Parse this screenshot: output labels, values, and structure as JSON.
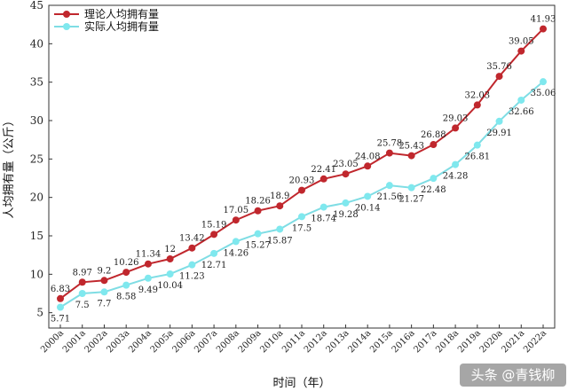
{
  "chart_data": {
    "type": "line",
    "title": "",
    "xlabel": "时间（年）",
    "ylabel": "人均拥有量（公斤）",
    "ylim": [
      3,
      45
    ],
    "yticks": [
      5,
      10,
      15,
      20,
      25,
      30,
      35,
      40,
      45
    ],
    "grid": false,
    "legend_position": "top-left",
    "categories": [
      "2000a",
      "2001a",
      "2002a",
      "2003a",
      "2004a",
      "2005a",
      "2006a",
      "2007a",
      "2008a",
      "2009a",
      "2010a",
      "2011a",
      "2012a",
      "2013a",
      "2014a",
      "2015a",
      "2016a",
      "2017a",
      "2018a",
      "2019a",
      "2020a",
      "2021a",
      "2022a"
    ],
    "series": [
      {
        "name": "理论人均拥有量",
        "color": "#c0272d",
        "marker_color": "#c0272d",
        "values": [
          6.83,
          8.97,
          9.2,
          10.26,
          11.34,
          12,
          13.42,
          15.19,
          17.05,
          18.26,
          18.9,
          20.93,
          22.41,
          23.05,
          24.08,
          25.78,
          25.43,
          26.88,
          29.03,
          32.03,
          35.76,
          39.05,
          41.93
        ],
        "labels": [
          "6.83",
          "8.97",
          "9.2",
          "10.26",
          "11.34",
          "12",
          "13.42",
          "15.19",
          "17.05",
          "18.26",
          "18.9",
          "20.93",
          "22.41",
          "23.05",
          "24.08",
          "25.78",
          "25.43",
          "26.88",
          "29.03",
          "32.03",
          "35.76",
          "39.05",
          "41.93"
        ]
      },
      {
        "name": "实际人均拥有量",
        "color": "#7fdde4",
        "marker_color": "#7fe8ee",
        "values": [
          5.71,
          7.5,
          7.7,
          8.58,
          9.49,
          10.04,
          11.23,
          12.71,
          14.26,
          15.27,
          15.87,
          17.5,
          18.74,
          19.28,
          20.14,
          21.56,
          21.27,
          22.48,
          24.28,
          26.81,
          29.91,
          32.66,
          35.06
        ],
        "labels": [
          "5.71",
          "7.5",
          "7.7",
          "8.58",
          "9.49",
          "10.04",
          "11.23",
          "12.71",
          "14.26",
          "15.27",
          "15.87",
          "17.5",
          "18.74",
          "19.28",
          "20.14",
          "21.56",
          "21.27",
          "22.48",
          "24.28",
          "26.81",
          "29.91",
          "32.66",
          "35.06"
        ]
      }
    ]
  },
  "watermark": "头条 @青钱柳"
}
